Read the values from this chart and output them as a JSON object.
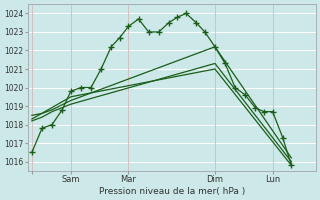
{
  "xlabel": "Pression niveau de la mer( hPa )",
  "bg_color": "#cce8e8",
  "grid_color": "#b8d8d8",
  "line_color": "#1a5e1a",
  "ylim": [
    1015.5,
    1024.5
  ],
  "yticks": [
    1016,
    1017,
    1018,
    1019,
    1020,
    1021,
    1022,
    1023,
    1024
  ],
  "xlim": [
    0,
    10
  ],
  "xtick_positions": [
    0.15,
    1.5,
    3.5,
    6.5,
    8.5
  ],
  "xtick_labels": [
    "",
    "Sam",
    "Mar",
    "Dim",
    "Lun"
  ],
  "vline_positions": [
    0.15,
    1.5,
    3.5,
    6.5,
    8.5
  ],
  "line1_x": [
    0.15,
    0.5,
    0.85,
    1.2,
    1.5,
    1.85,
    2.2,
    2.55,
    2.9,
    3.2,
    3.5,
    3.85,
    4.2,
    4.55,
    4.9,
    5.2,
    5.5,
    5.85,
    6.15,
    6.5,
    6.85,
    7.2,
    7.55,
    7.9,
    8.2,
    8.5,
    8.85,
    9.15
  ],
  "line1_y": [
    1016.5,
    1017.8,
    1018.0,
    1018.8,
    1019.8,
    1020.0,
    1020.0,
    1021.0,
    1022.2,
    1022.7,
    1023.3,
    1023.7,
    1023.0,
    1023.0,
    1023.5,
    1023.8,
    1024.0,
    1023.5,
    1023.0,
    1022.2,
    1021.3,
    1020.0,
    1019.6,
    1018.9,
    1018.7,
    1018.7,
    1017.3,
    1015.8
  ],
  "line2_x": [
    0.15,
    0.5,
    0.85,
    1.5,
    6.5,
    9.15
  ],
  "line2_y": [
    1018.2,
    1018.4,
    1018.7,
    1019.1,
    1021.3,
    1016.0
  ],
  "line3_x": [
    0.15,
    0.5,
    0.85,
    1.5,
    6.5,
    9.15
  ],
  "line3_y": [
    1018.5,
    1018.6,
    1018.8,
    1019.3,
    1022.2,
    1016.2
  ],
  "line4_x": [
    0.15,
    1.5,
    6.5,
    9.15
  ],
  "line4_y": [
    1018.3,
    1019.5,
    1021.0,
    1015.8
  ]
}
